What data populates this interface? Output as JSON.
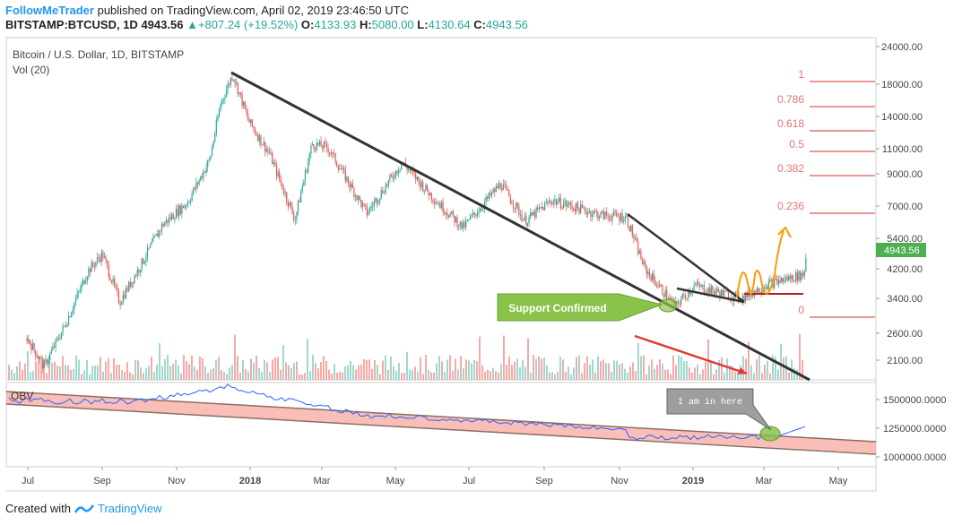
{
  "header": {
    "author": "FollowMeTrader",
    "published_text": "published on TradingView.com, April 02, 2019 23:46:50 UTC",
    "symbol": "BITSTAMP:BTCUSD, 1D",
    "last": "4943.56",
    "change": "+807.24 (+19.52%)",
    "o_label": "O:",
    "o": "4133.93",
    "h_label": "H:",
    "h": "5080.00",
    "l_label": "L:",
    "l": "4130.64",
    "c_label": "C:",
    "c": "4943.56"
  },
  "chart_data": {
    "type": "line",
    "title": "Bitcoin / U.S. Dollar, 1D, BITSTAMP",
    "indicator_label": "Vol (20)",
    "obv_label": "OBV",
    "y_scale": "log",
    "ylim": [
      1750,
      26000
    ],
    "price_ticks": [
      "24000.00",
      "18000.00",
      "14000.00",
      "11000.00",
      "9000.00",
      "7000.00",
      "5400.00",
      "4200.00",
      "3400.00",
      "2600.00",
      "2100.00"
    ],
    "obv_ticks": [
      "1500000.0000",
      "1250000.0000",
      "1000000.0000"
    ],
    "x_ticks": [
      "Jul",
      "Sep",
      "Nov",
      "2018",
      "Mar",
      "May",
      "Jul",
      "Sep",
      "Nov",
      "2019",
      "Mar",
      "May"
    ],
    "last_price_label": "4943.56",
    "series": [
      {
        "values_approx": [
          [
            "2017-07-01",
            2500
          ],
          [
            "2017-07-15",
            2000
          ],
          [
            "2017-08-01",
            2750
          ],
          [
            "2017-08-20",
            4200
          ],
          [
            "2017-09-01",
            4800
          ],
          [
            "2017-09-15",
            3300
          ],
          [
            "2017-10-01",
            4300
          ],
          [
            "2017-10-20",
            6000
          ],
          [
            "2017-11-10",
            7200
          ],
          [
            "2017-11-28",
            10000
          ],
          [
            "2017-12-07",
            15500
          ],
          [
            "2017-12-17",
            19500
          ],
          [
            "2017-12-30",
            13500
          ],
          [
            "2018-01-16",
            10500
          ],
          [
            "2018-02-06",
            6300
          ],
          [
            "2018-02-20",
            11300
          ],
          [
            "2018-03-05",
            11000
          ],
          [
            "2018-04-06",
            6600
          ],
          [
            "2018-05-05",
            9800
          ],
          [
            "2018-05-31",
            7400
          ],
          [
            "2018-06-24",
            5900
          ],
          [
            "2018-07-25",
            8300
          ],
          [
            "2018-08-14",
            6200
          ],
          [
            "2018-09-05",
            7300
          ],
          [
            "2018-10-15",
            6500
          ],
          [
            "2018-11-05",
            6400
          ],
          [
            "2018-11-20",
            4300
          ],
          [
            "2018-12-15",
            3200
          ],
          [
            "2018-12-31",
            3750
          ],
          [
            "2019-01-15",
            3600
          ],
          [
            "2019-02-07",
            3400
          ],
          [
            "2019-03-01",
            3800
          ],
          [
            "2019-03-31",
            4100
          ],
          [
            "2019-04-02",
            4943
          ]
        ]
      }
    ],
    "fibonacci": [
      {
        "label": "1"
      },
      {
        "label": "0.786"
      },
      {
        "label": "0.618"
      },
      {
        "label": "0.5"
      },
      {
        "label": "0.382"
      },
      {
        "label": "0.236"
      },
      {
        "label": "0"
      }
    ],
    "annotations": {
      "support": "Support Confirmed",
      "obv_note": "I am in here"
    },
    "colors": {
      "up": "#26a69a",
      "down": "#ef5350",
      "fib": "#e57373",
      "trend": "#333333",
      "support_box": "#8bc34a",
      "obv_line": "#2962ff",
      "obv_channel": "#f7a8a0",
      "arrow": "#e53935",
      "orange": "#ff9800",
      "price_badge": "#4caf50"
    }
  },
  "footer": {
    "created_with": "Created with",
    "brand": "TradingView"
  }
}
